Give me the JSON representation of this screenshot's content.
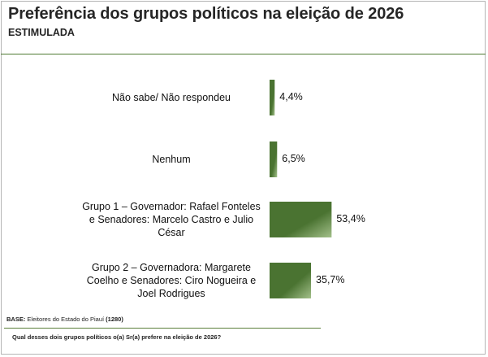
{
  "header": {
    "title": "Preferência dos grupos políticos na eleição de 2026",
    "subtitle": "ESTIMULADA"
  },
  "chart_data": {
    "type": "bar",
    "orientation": "horizontal",
    "title": "Preferência dos grupos políticos na eleição de 2026",
    "subtitle": "ESTIMULADA",
    "categories": [
      "Não sabe/ Não respondeu",
      "Nenhum",
      "Grupo 1 – Governador: Rafael Fonteles e Senadores: Marcelo Castro e Julio César",
      "Grupo 2 – Governadora: Margarete Coelho e Senadores: Ciro Nogueira e Joel Rodrigues"
    ],
    "category_lines": [
      [
        "Não sabe/ Não respondeu"
      ],
      [
        "Nenhum"
      ],
      [
        "Grupo 1 – Governador: Rafael Fonteles",
        "e Senadores: Marcelo Castro e Julio",
        "César"
      ],
      [
        "Grupo 2 – Governadora: Margarete",
        "Coelho e Senadores: Ciro Nogueira e",
        "Joel Rodrigues"
      ]
    ],
    "values": [
      4.4,
      6.5,
      53.4,
      35.7
    ],
    "value_labels": [
      "4,4%",
      "6,5%",
      "53,4%",
      "35,7%"
    ],
    "unit": "%",
    "xlim": [
      0,
      100
    ],
    "grid": false,
    "legend": "none",
    "bar_color": "#4a7331",
    "bar_color_light": "#a3c08a"
  },
  "footer": {
    "base_label": "BASE:",
    "base_text": " Eleitores do Estado do Piauí ",
    "base_count": "(1280)",
    "question": "Qual desses dois grupos políticos o(a) Sr(a) prefere na eleição de 2026?"
  }
}
